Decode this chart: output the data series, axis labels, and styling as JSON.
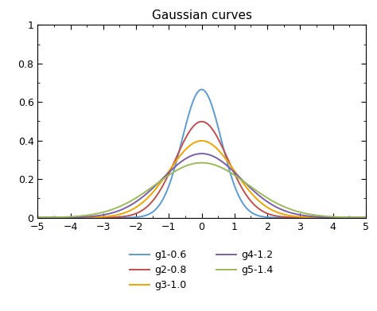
{
  "title": "Gaussian curves",
  "xlim": [
    -5,
    5
  ],
  "ylim": [
    0,
    1
  ],
  "xticks": [
    -5,
    -4,
    -3,
    -2,
    -1,
    0,
    1,
    2,
    3,
    4,
    5
  ],
  "yticks": [
    0,
    0.2,
    0.4,
    0.6,
    0.8,
    1
  ],
  "ytick_labels": [
    "0",
    "0.2",
    "0.4",
    "0.6",
    "0.8",
    "1"
  ],
  "gaussians": [
    {
      "label": "g1-0.6",
      "mu": 0,
      "sigma": 0.6,
      "color": "#5b9bd5"
    },
    {
      "label": "g2-0.8",
      "mu": 0,
      "sigma": 0.8,
      "color": "#c0504d"
    },
    {
      "label": "g3-1.0",
      "mu": 0,
      "sigma": 1.0,
      "color": "#f0a500"
    },
    {
      "label": "g4-1.2",
      "mu": 0,
      "sigma": 1.2,
      "color": "#7b5ea7"
    },
    {
      "label": "g5-1.4",
      "mu": 0,
      "sigma": 1.4,
      "color": "#9bbb59"
    }
  ],
  "legend_ncol": 2,
  "background_color": "#ffffff",
  "linewidth": 1.4,
  "tick_labelsize": 9,
  "title_fontsize": 11,
  "legend_fontsize": 9
}
